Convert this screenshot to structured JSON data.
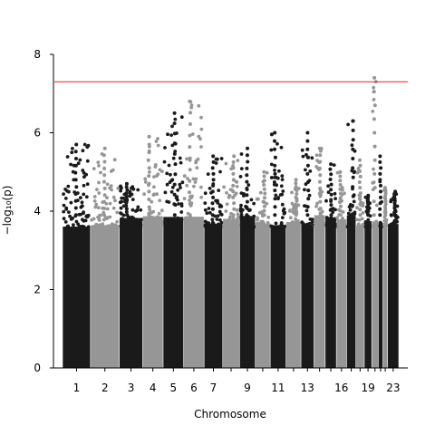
{
  "chart_data": {
    "type": "scatter",
    "subtype": "manhattan",
    "title": "",
    "xlabel": "Chromosome",
    "ylabel": "−log₁₀(p)",
    "ylim": [
      0,
      8
    ],
    "yticks": [
      0,
      2,
      4,
      6,
      8
    ],
    "grid": false,
    "legend": "none",
    "significance_line": {
      "y": 7.3,
      "color": "#d62728"
    },
    "colors": {
      "odd": "#1a1a1a",
      "even": "#969696"
    },
    "chromosomes": [
      {
        "label": "1",
        "shown": true,
        "peak": 5.7
      },
      {
        "label": "2",
        "shown": true,
        "peak": 5.6
      },
      {
        "label": "3",
        "shown": true,
        "peak": 4.7
      },
      {
        "label": "4",
        "shown": true,
        "peak": 5.9
      },
      {
        "label": "5",
        "shown": true,
        "peak": 6.5
      },
      {
        "label": "6",
        "shown": true,
        "peak": 6.8
      },
      {
        "label": "7",
        "shown": true,
        "peak": 5.4
      },
      {
        "label": "8",
        "shown": false,
        "peak": 5.4
      },
      {
        "label": "9",
        "shown": true,
        "peak": 5.6
      },
      {
        "label": "10",
        "shown": false,
        "peak": 5.0
      },
      {
        "label": "11",
        "shown": true,
        "peak": 6.0
      },
      {
        "label": "12",
        "shown": false,
        "peak": 4.8
      },
      {
        "label": "13",
        "shown": true,
        "peak": 6.0
      },
      {
        "label": "14",
        "shown": false,
        "peak": 5.6
      },
      {
        "label": "15",
        "shown": false,
        "peak": 5.2
      },
      {
        "label": "16",
        "shown": true,
        "peak": 5.0
      },
      {
        "label": "17",
        "shown": false,
        "peak": 6.3
      },
      {
        "label": "18",
        "shown": false,
        "peak": 5.3
      },
      {
        "label": "19",
        "shown": true,
        "peak": 4.4
      },
      {
        "label": "20",
        "shown": false,
        "peak": 7.4
      },
      {
        "label": "21",
        "shown": false,
        "peak": 5.4
      },
      {
        "label": "22",
        "shown": false,
        "peak": 4.6
      },
      {
        "label": "23",
        "shown": true,
        "peak": 4.5
      }
    ]
  }
}
